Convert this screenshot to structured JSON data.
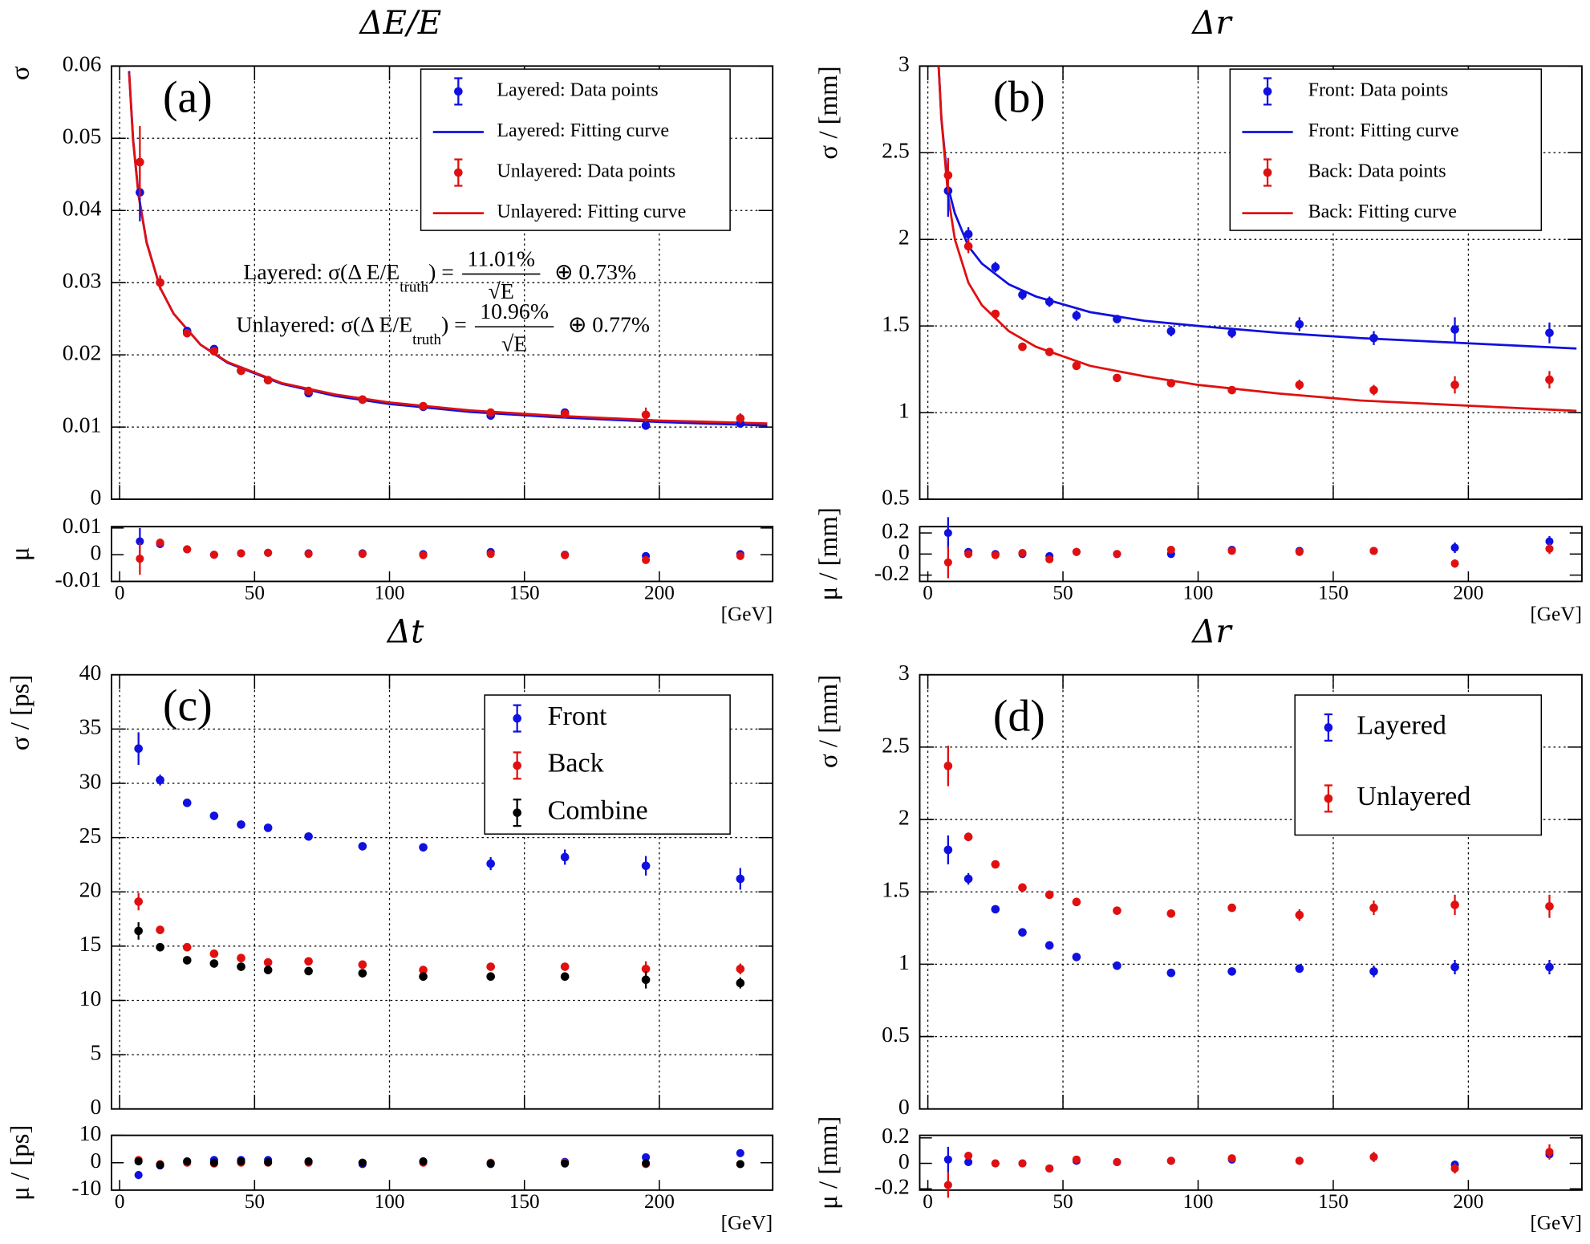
{
  "chart_data": [
    {
      "type": "scatter",
      "title": "ΔE/E",
      "panel_label": "(a)",
      "ylabel": "σ",
      "residual_ylabel": "μ",
      "xlabel": "[GeV]",
      "x": [
        7.5,
        15,
        25,
        35,
        45,
        55,
        70,
        90,
        112.5,
        137.5,
        165,
        195,
        230
      ],
      "xlim": [
        -3,
        242
      ],
      "xticks": [
        0,
        50,
        100,
        150,
        200
      ],
      "ylim": [
        0,
        0.06
      ],
      "yticks": [
        0,
        0.01,
        0.02,
        0.03,
        0.04,
        0.05,
        0.06
      ],
      "residual_ylim": [
        -0.01,
        0.0105
      ],
      "residual_yticks": [
        -0.01,
        0,
        0.01
      ],
      "grid": true,
      "series": [
        {
          "name": "Layered: Data points",
          "color": "#1010e0",
          "values": [
            0.0425,
            0.03,
            0.0233,
            0.0208,
            0.0178,
            0.0165,
            0.0147,
            0.0138,
            0.0128,
            0.0116,
            0.012,
            0.0102,
            0.0105
          ],
          "errors": [
            0.004,
            0.0008,
            0.0005,
            0.0004,
            0.0003,
            0.0003,
            0.0003,
            0.0003,
            0.0003,
            0.0004,
            0.0004,
            0.0005,
            0.0004
          ],
          "residuals": [
            0.005,
            0.004,
            0.002,
            0,
            0.0005,
            0.0007,
            0.0005,
            0.0005,
            0.0002,
            0.001,
            0,
            -0.0005,
            0.0002
          ],
          "residual_errors": [
            0.005,
            0.0015,
            0.0006,
            0.0004,
            0.0003,
            0.0003,
            0.0003,
            0.0003,
            0.0003,
            0.0004,
            0.0004,
            0.0005,
            0.0004
          ]
        },
        {
          "name": "Unlayered: Data points",
          "color": "#e01010",
          "values": [
            0.0467,
            0.03,
            0.023,
            0.0205,
            0.0178,
            0.0165,
            0.015,
            0.0138,
            0.0129,
            0.012,
            0.0118,
            0.0117,
            0.0112
          ],
          "errors": [
            0.005,
            0.001,
            0.0005,
            0.0004,
            0.0003,
            0.0003,
            0.0003,
            0.0003,
            0.0003,
            0.0004,
            0.0004,
            0.001,
            0.0007
          ],
          "residuals": [
            -0.0015,
            0.0045,
            0.002,
            0,
            0.0005,
            0.0007,
            0.0003,
            0.0003,
            -0.0002,
            0.0003,
            -0.0002,
            -0.002,
            -0.0005
          ],
          "residual_errors": [
            0.006,
            0.0015,
            0.0006,
            0.0004,
            0.0003,
            0.0003,
            0.0003,
            0.0003,
            0.0003,
            0.0004,
            0.0004,
            0.0008,
            0.0006
          ]
        }
      ],
      "fits": [
        {
          "name": "Layered: Fitting curve",
          "color": "#1010e0",
          "x": [
            3.5,
            5,
            7,
            10,
            15,
            20,
            30,
            40,
            60,
            80,
            100,
            130,
            160,
            200,
            240
          ],
          "values": [
            0.0593,
            0.0498,
            0.0422,
            0.0356,
            0.0293,
            0.0257,
            0.0214,
            0.0189,
            0.016,
            0.0143,
            0.0132,
            0.0121,
            0.0114,
            0.0107,
            0.0102
          ]
        },
        {
          "name": "Unlayered: Fitting curve",
          "color": "#e01010",
          "x": [
            3.5,
            5,
            7,
            10,
            15,
            20,
            30,
            40,
            60,
            80,
            100,
            130,
            160,
            200,
            240
          ],
          "values": [
            0.0591,
            0.0496,
            0.0421,
            0.0355,
            0.0293,
            0.0257,
            0.0214,
            0.019,
            0.0161,
            0.0145,
            0.0134,
            0.0123,
            0.0116,
            0.0109,
            0.0105
          ]
        }
      ],
      "annotations": [
        {
          "prefix": "Layered: σ(Δ E/E",
          "subscript": "truth",
          "suffix": ") =",
          "numerator": "11.01%",
          "denominator": "√E",
          "term": "⊕ 0.73%"
        },
        {
          "prefix": "Unlayered: σ(Δ E/E",
          "subscript": "truth",
          "suffix": ") =",
          "numerator": "10.96%",
          "denominator": "√E",
          "term": "⊕ 0.77%"
        }
      ]
    },
    {
      "type": "scatter",
      "title": "Δr",
      "panel_label": "(b)",
      "ylabel": "σ / [mm]",
      "residual_ylabel": "μ / [mm]",
      "xlabel": "[GeV]",
      "x": [
        7.5,
        15,
        25,
        35,
        45,
        55,
        70,
        90,
        112.5,
        137.5,
        165,
        195,
        230
      ],
      "xlim": [
        -3,
        242
      ],
      "xticks": [
        0,
        50,
        100,
        150,
        200
      ],
      "ylim": [
        0.5,
        3
      ],
      "yticks": [
        0.5,
        1,
        1.5,
        2,
        2.5,
        3
      ],
      "residual_ylim": [
        -0.26,
        0.26
      ],
      "residual_yticks": [
        -0.2,
        0,
        0.2
      ],
      "grid": true,
      "series": [
        {
          "name": "Front: Data points",
          "color": "#1010e0",
          "values": [
            2.28,
            2.03,
            1.84,
            1.68,
            1.64,
            1.56,
            1.54,
            1.47,
            1.46,
            1.51,
            1.43,
            1.48,
            1.46
          ],
          "errors": [
            0.15,
            0.04,
            0.03,
            0.03,
            0.03,
            0.03,
            0.02,
            0.03,
            0.03,
            0.04,
            0.04,
            0.07,
            0.06
          ],
          "residuals": [
            0.2,
            0.02,
            0,
            0,
            -0.02,
            0.02,
            0,
            0,
            0.04,
            0.03,
            0.03,
            0.06,
            0.12
          ],
          "residual_errors": [
            0.15,
            0.03,
            0.02,
            0.02,
            0.02,
            0.02,
            0.02,
            0.02,
            0.02,
            0.02,
            0.03,
            0.05,
            0.05
          ]
        },
        {
          "name": "Back: Data points",
          "color": "#e01010",
          "values": [
            2.37,
            1.96,
            1.57,
            1.38,
            1.35,
            1.27,
            1.2,
            1.17,
            1.13,
            1.16,
            1.13,
            1.16,
            1.19
          ],
          "errors": [
            0.1,
            0.04,
            0.02,
            0.02,
            0.02,
            0.02,
            0.02,
            0.02,
            0.02,
            0.03,
            0.03,
            0.05,
            0.05
          ],
          "residuals": [
            -0.08,
            0,
            -0.01,
            0.01,
            -0.05,
            0.02,
            0,
            0.04,
            0.03,
            0.02,
            0.03,
            -0.09,
            0.05
          ],
          "residual_errors": [
            0.15,
            0.03,
            0.02,
            0.02,
            0.02,
            0.02,
            0.02,
            0.02,
            0.02,
            0.02,
            0.03,
            0.04,
            0.05
          ]
        }
      ],
      "fits": [
        {
          "name": "Front: Fitting curve",
          "color": "#1010e0",
          "x": [
            4,
            5,
            7.5,
            10,
            15,
            20,
            30,
            40,
            60,
            80,
            100,
            130,
            160,
            200,
            240
          ],
          "values": [
            3.0,
            2.7,
            2.3,
            2.15,
            1.96,
            1.86,
            1.74,
            1.67,
            1.58,
            1.53,
            1.5,
            1.46,
            1.43,
            1.4,
            1.37
          ]
        },
        {
          "name": "Back: Fitting curve",
          "color": "#e01010",
          "x": [
            4,
            5,
            7.5,
            10,
            15,
            20,
            30,
            40,
            60,
            80,
            100,
            130,
            160,
            200,
            240
          ],
          "values": [
            3.0,
            2.7,
            2.25,
            2.0,
            1.75,
            1.62,
            1.47,
            1.38,
            1.27,
            1.21,
            1.16,
            1.11,
            1.07,
            1.04,
            1.01
          ]
        }
      ]
    },
    {
      "type": "scatter",
      "title": "Δt",
      "panel_label": "(c)",
      "ylabel": "σ / [ps]",
      "residual_ylabel": "μ / [ps]",
      "xlabel": "[GeV]",
      "x": [
        7,
        15,
        25,
        35,
        45,
        55,
        70,
        90,
        112.5,
        137.5,
        165,
        195,
        230
      ],
      "xlim": [
        -3,
        242
      ],
      "xticks": [
        0,
        50,
        100,
        150,
        200
      ],
      "ylim": [
        0,
        40
      ],
      "yticks": [
        0,
        5,
        10,
        15,
        20,
        25,
        30,
        35,
        40
      ],
      "residual_ylim": [
        -10,
        10
      ],
      "residual_yticks": [
        -10,
        0,
        10
      ],
      "grid": true,
      "series": [
        {
          "name": "Front",
          "color": "#1010e0",
          "values": [
            33.2,
            30.3,
            28.2,
            27.0,
            26.2,
            25.9,
            25.1,
            24.2,
            24.1,
            22.6,
            23.2,
            22.4,
            21.2
          ],
          "errors": [
            1.5,
            0.5,
            0.3,
            0.3,
            0.3,
            0.3,
            0.3,
            0.3,
            0.3,
            0.6,
            0.7,
            0.9,
            1.0
          ],
          "residuals": [
            -4.5,
            -1,
            0.5,
            1,
            1,
            1,
            0.5,
            -0.5,
            0.5,
            -0.5,
            0.3,
            2,
            3.5
          ],
          "residual_errors": [
            1.5,
            0.5,
            0.4,
            0.4,
            0.4,
            0.4,
            0.4,
            0.4,
            0.4,
            0.6,
            0.7,
            0.9,
            0.8
          ]
        },
        {
          "name": "Back",
          "color": "#e01010",
          "values": [
            19.1,
            16.5,
            14.9,
            14.3,
            13.9,
            13.5,
            13.6,
            13.3,
            12.8,
            13.1,
            13.1,
            12.9,
            12.9
          ],
          "errors": [
            0.8,
            0.3,
            0.2,
            0.2,
            0.2,
            0.2,
            0.2,
            0.2,
            0.3,
            0.3,
            0.3,
            0.7,
            0.5
          ],
          "residuals": [
            1,
            -0.5,
            0,
            -0.3,
            0,
            0,
            0,
            0,
            0,
            0,
            0,
            -0.5,
            -0.5
          ],
          "residual_errors": [
            0.8,
            0.3,
            0.3,
            0.3,
            0.3,
            0.3,
            0.3,
            0.3,
            0.3,
            0.3,
            0.3,
            0.6,
            0.5
          ]
        },
        {
          "name": "Combine",
          "color": "#000000",
          "values": [
            16.4,
            14.9,
            13.7,
            13.4,
            13.1,
            12.8,
            12.7,
            12.5,
            12.2,
            12.2,
            12.2,
            11.9,
            11.6
          ],
          "errors": [
            0.8,
            0.2,
            0.2,
            0.2,
            0.2,
            0.2,
            0.2,
            0.2,
            0.3,
            0.3,
            0.3,
            0.8,
            0.5
          ],
          "residuals": [
            0.5,
            -0.8,
            0.5,
            0,
            0.5,
            0.2,
            0.5,
            0,
            0.5,
            -0.3,
            -0.3,
            -0.2,
            -0.5
          ],
          "residual_errors": [
            0.8,
            0.3,
            0.3,
            0.3,
            0.3,
            0.3,
            0.3,
            0.3,
            0.3,
            0.3,
            0.3,
            0.6,
            0.5
          ]
        }
      ]
    },
    {
      "type": "scatter",
      "title": "Δr",
      "panel_label": "(d)",
      "ylabel": "σ / [mm]",
      "residual_ylabel": "μ / [mm]",
      "xlabel": "[GeV]",
      "x": [
        7.5,
        15,
        25,
        35,
        45,
        55,
        70,
        90,
        112.5,
        137.5,
        165,
        195,
        230
      ],
      "xlim": [
        -3,
        242
      ],
      "xticks": [
        0,
        50,
        100,
        150,
        200
      ],
      "ylim": [
        0,
        3
      ],
      "yticks": [
        0,
        0.5,
        1,
        1.5,
        2,
        2.5,
        3
      ],
      "residual_ylim": [
        -0.21,
        0.22
      ],
      "residual_yticks": [
        -0.2,
        0,
        0.2
      ],
      "grid": true,
      "series": [
        {
          "name": "Layered",
          "color": "#1010e0",
          "values": [
            1.79,
            1.59,
            1.38,
            1.22,
            1.13,
            1.05,
            0.99,
            0.94,
            0.95,
            0.97,
            0.95,
            0.98,
            0.98
          ],
          "errors": [
            0.1,
            0.04,
            0.02,
            0.02,
            0.02,
            0.02,
            0.02,
            0.02,
            0.02,
            0.02,
            0.04,
            0.05,
            0.05
          ],
          "residuals": [
            0.03,
            0.01,
            0,
            0,
            -0.04,
            0.02,
            0.01,
            0.02,
            0.03,
            0.02,
            0.05,
            -0.01,
            0.07
          ],
          "residual_errors": [
            0.1,
            0.03,
            0.02,
            0.02,
            0.02,
            0.02,
            0.02,
            0.02,
            0.02,
            0.02,
            0.03,
            0.03,
            0.03
          ]
        },
        {
          "name": "Unlayered",
          "color": "#e01010",
          "values": [
            2.37,
            1.88,
            1.69,
            1.53,
            1.48,
            1.43,
            1.37,
            1.35,
            1.39,
            1.34,
            1.39,
            1.41,
            1.4
          ],
          "errors": [
            0.14,
            0.03,
            0.02,
            0.02,
            0.02,
            0.02,
            0.02,
            0.02,
            0.02,
            0.04,
            0.05,
            0.07,
            0.08
          ],
          "residuals": [
            -0.17,
            0.06,
            0,
            0,
            -0.04,
            0.03,
            0.01,
            0.02,
            0.04,
            0.02,
            0.05,
            -0.04,
            0.09
          ],
          "residual_errors": [
            0.1,
            0.03,
            0.02,
            0.02,
            0.02,
            0.02,
            0.02,
            0.02,
            0.02,
            0.03,
            0.04,
            0.04,
            0.06
          ]
        }
      ]
    }
  ]
}
